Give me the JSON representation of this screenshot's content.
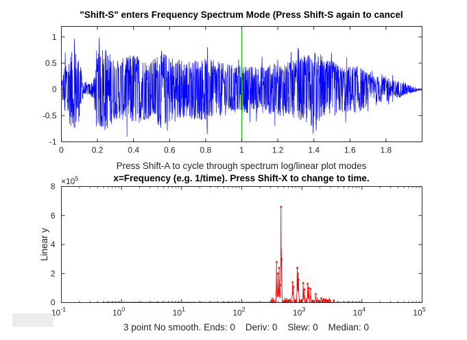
{
  "chart_data": [
    {
      "type": "line",
      "title": "\"Shift-S\" enters Frequency Spectrum Mode (Press Shift-S again to cancel",
      "xlabel": "Press Shift-A to cycle through spectrum log/linear plot modes",
      "ylabel": "",
      "xlim": [
        0,
        2
      ],
      "ylim": [
        -1,
        1.2
      ],
      "xticks": [
        "0",
        "0.2",
        "0.4",
        "0.6",
        "0.8",
        "1",
        "1.2",
        "1.4",
        "1.6",
        "1.8"
      ],
      "xtick_values": [
        0,
        0.2,
        0.4,
        0.6,
        0.8,
        1,
        1.2,
        1.4,
        1.6,
        1.8
      ],
      "yticks": [
        "-1",
        "-0.5",
        "0",
        "0.5",
        "1"
      ],
      "ytick_values": [
        -1,
        -0.5,
        0,
        0.5,
        1
      ],
      "series_color": "#0000ff",
      "cursor_x": 1,
      "cursor_color": "#00cc00",
      "envelope": {
        "t": [
          0,
          0.02,
          0.05,
          0.08,
          0.1,
          0.12,
          0.14,
          0.16,
          0.18,
          0.2,
          0.23,
          0.26,
          0.3,
          0.35,
          0.4,
          0.45,
          0.5,
          0.55,
          0.6,
          0.7,
          0.8,
          0.9,
          1.0,
          1.1,
          1.2,
          1.3,
          1.35,
          1.4,
          1.45,
          1.5,
          1.55,
          1.6,
          1.65,
          1.7,
          1.75,
          1.8,
          1.85,
          1.9,
          1.95,
          2.0
        ],
        "amp": [
          0.1,
          0.55,
          0.7,
          0.75,
          0.6,
          0.15,
          0.1,
          0.12,
          0.2,
          0.65,
          0.85,
          0.75,
          0.55,
          0.6,
          0.7,
          0.6,
          0.55,
          0.75,
          0.65,
          0.55,
          0.6,
          0.5,
          0.45,
          0.45,
          0.5,
          0.55,
          0.65,
          0.75,
          0.55,
          0.55,
          0.45,
          0.45,
          0.45,
          0.3,
          0.25,
          0.25,
          0.18,
          0.12,
          0.06,
          0.01
        ]
      }
    },
    {
      "type": "line",
      "title": "x=Frequency (e.g. 1/time). Press Shift-X to change to time.",
      "xlabel": "3 point No smooth. Ends: 0    Deriv: 0    Slew: 0    Median: 0",
      "ylabel": "Linear y",
      "xscale": "log",
      "xlim": [
        0.1,
        100000
      ],
      "ylim": [
        0,
        800000
      ],
      "y_multiplier": "×10",
      "y_multiplier_exp": "5",
      "xticks": [
        {
          "base": "10",
          "exp": "-1",
          "value": 0.1
        },
        {
          "base": "10",
          "exp": "0",
          "value": 1
        },
        {
          "base": "10",
          "exp": "1",
          "value": 10
        },
        {
          "base": "10",
          "exp": "2",
          "value": 100
        },
        {
          "base": "10",
          "exp": "3",
          "value": 1000
        },
        {
          "base": "10",
          "exp": "4",
          "value": 10000
        },
        {
          "base": "10",
          "exp": "5",
          "value": 100000
        }
      ],
      "yticks": [
        "0",
        "2",
        "4",
        "6",
        "8"
      ],
      "ytick_values": [
        0,
        200000,
        400000,
        600000,
        800000
      ],
      "series_color": "#ff0000",
      "peaks": {
        "freq": [
          380,
          400,
          420,
          440,
          450,
          460,
          700,
          720,
          840,
          860,
          880,
          1050,
          1100,
          1250,
          1300,
          1400,
          1700,
          2100,
          2500,
          3400
        ],
        "value": [
          280000,
          200000,
          240000,
          120000,
          660000,
          300000,
          140000,
          110000,
          240000,
          200000,
          160000,
          135000,
          90000,
          130000,
          100000,
          95000,
          60000,
          30000,
          20000,
          15000
        ]
      },
      "freq_range": [
        0.5,
        10000
      ]
    }
  ]
}
